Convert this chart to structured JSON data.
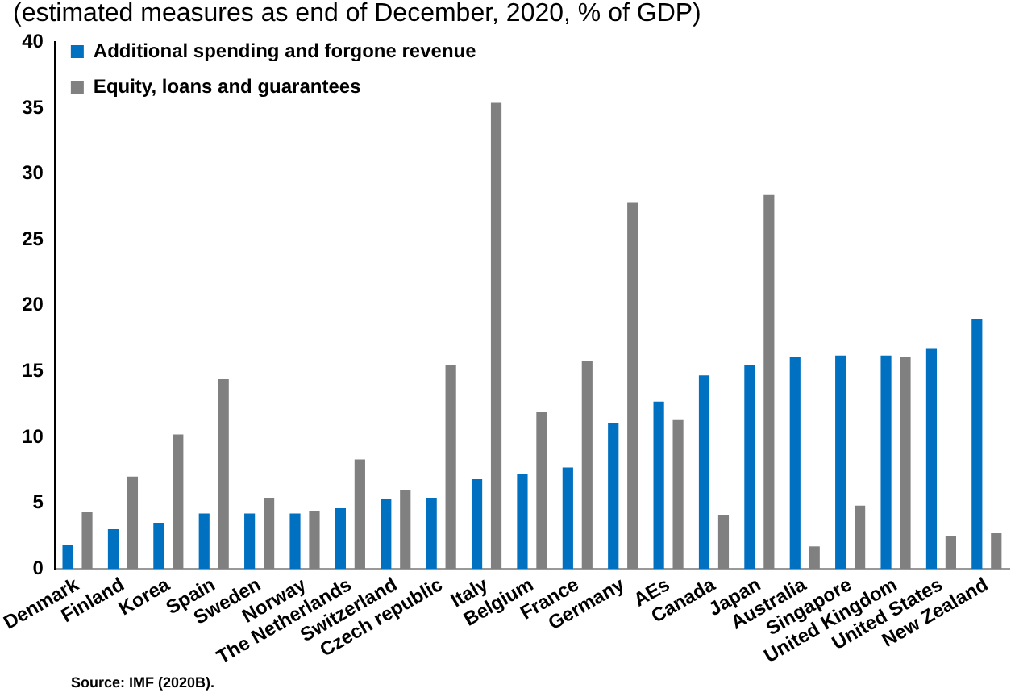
{
  "chart_data": {
    "type": "bar",
    "title": "(estimated measures as end of December, 2020, % of GDP)",
    "categories": [
      "Denmark",
      "Finland",
      "Korea",
      "Spain",
      "Sweden",
      "Norway",
      "The Netherlands",
      "Switzerland",
      "Czech republic",
      "Italy",
      "Belgium",
      "France",
      "Germany",
      "AEs",
      "Canada",
      "Japan",
      "Australia",
      "Singapore",
      "United Kingdom",
      "United States",
      "New Zealand"
    ],
    "series": [
      {
        "name": "Additional spending and forgone revenue",
        "color": "#0070c0",
        "values": [
          1.8,
          3.0,
          3.5,
          4.2,
          4.2,
          4.2,
          4.6,
          5.3,
          5.4,
          6.8,
          7.2,
          7.7,
          11.1,
          12.7,
          14.7,
          15.5,
          16.1,
          16.2,
          16.2,
          16.7,
          19.0
        ]
      },
      {
        "name": "Equity, loans and guarantees",
        "color": "#808080",
        "values": [
          4.3,
          7.0,
          10.2,
          14.4,
          5.4,
          4.4,
          8.3,
          6.0,
          15.5,
          35.4,
          11.9,
          15.8,
          27.8,
          11.3,
          4.1,
          28.4,
          1.7,
          4.8,
          16.1,
          2.5,
          2.7
        ]
      }
    ],
    "ylim": [
      0,
      40
    ],
    "yticks": [
      0,
      5,
      10,
      15,
      20,
      25,
      30,
      35,
      40
    ],
    "grid": false,
    "legend": "top left",
    "annotations": [
      "Source: IMF (2020B)."
    ]
  }
}
